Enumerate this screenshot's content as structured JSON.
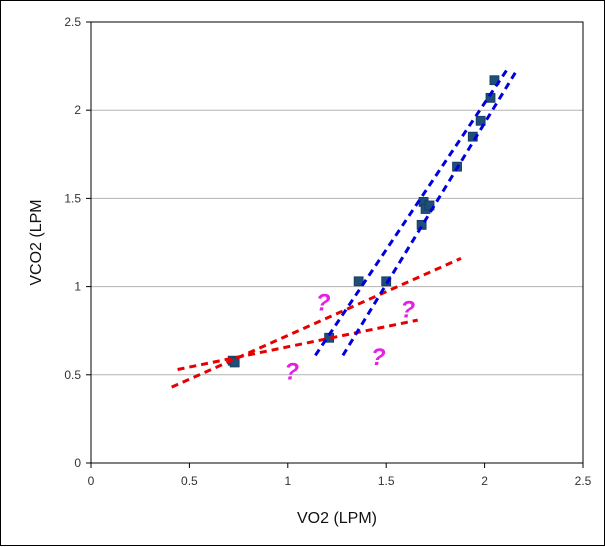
{
  "chart_data": {
    "type": "scatter",
    "title": "",
    "xlabel": "VO2 (LPM)",
    "ylabel": "VCO2 (LPM",
    "xlim": [
      0,
      2.5
    ],
    "ylim": [
      0,
      2.5
    ],
    "xticks": [
      0,
      0.5,
      1,
      1.5,
      2,
      2.5
    ],
    "yticks": [
      0,
      0.5,
      1,
      1.5,
      2,
      2.5
    ],
    "xtick_labels": [
      "0",
      "0.5",
      "1",
      "1.5",
      "2",
      "2.5"
    ],
    "ytick_labels": [
      "0",
      "0.5",
      "1",
      "1.5",
      "2",
      "2.5"
    ],
    "grid": "horizontal",
    "colors": {
      "points": "#1f4e79",
      "red_line": "#e60000",
      "blue_line": "#0000dd",
      "question": "#e61ee6",
      "grid": "#b3b3b3"
    },
    "series": [
      {
        "name": "data",
        "points": [
          {
            "x": 0.72,
            "y": 0.58
          },
          {
            "x": 0.73,
            "y": 0.57
          },
          {
            "x": 1.21,
            "y": 0.71
          },
          {
            "x": 1.36,
            "y": 1.03
          },
          {
            "x": 1.5,
            "y": 1.03
          },
          {
            "x": 1.68,
            "y": 1.35
          },
          {
            "x": 1.69,
            "y": 1.48
          },
          {
            "x": 1.7,
            "y": 1.44
          },
          {
            "x": 1.72,
            "y": 1.46
          },
          {
            "x": 1.86,
            "y": 1.68
          },
          {
            "x": 1.94,
            "y": 1.85
          },
          {
            "x": 1.98,
            "y": 1.94
          },
          {
            "x": 2.03,
            "y": 2.07
          },
          {
            "x": 2.05,
            "y": 2.17
          }
        ]
      }
    ],
    "trend_lines": [
      {
        "name": "red-line-steep",
        "color": "red",
        "x1": 0.41,
        "y1": 0.43,
        "x2": 1.88,
        "y2": 1.16
      },
      {
        "name": "red-line-shallow",
        "color": "red",
        "x1": 0.44,
        "y1": 0.53,
        "x2": 1.66,
        "y2": 0.81
      },
      {
        "name": "blue-line-left",
        "color": "blue",
        "x1": 1.14,
        "y1": 0.61,
        "x2": 2.12,
        "y2": 2.24
      },
      {
        "name": "blue-line-right",
        "color": "blue",
        "x1": 1.28,
        "y1": 0.61,
        "x2": 2.16,
        "y2": 2.22
      }
    ],
    "annotations": [
      {
        "text": "?",
        "x": 1.18,
        "y": 0.91
      },
      {
        "text": "?",
        "x": 1.61,
        "y": 0.87
      },
      {
        "text": "?",
        "x": 1.02,
        "y": 0.52
      },
      {
        "text": "?",
        "x": 1.46,
        "y": 0.6
      }
    ]
  }
}
